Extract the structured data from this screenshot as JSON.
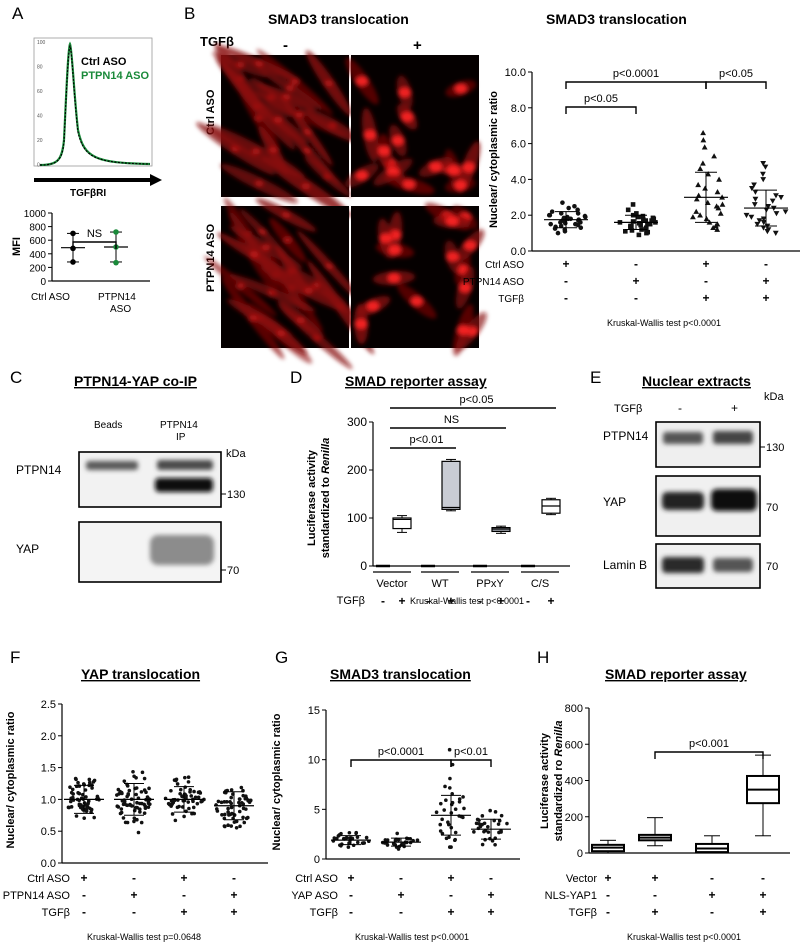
{
  "panels": {
    "A": {
      "letter": "A",
      "legend": [
        "Ctrl ASO",
        "PTPN14 ASO"
      ],
      "colors": {
        "ctrl": "#000000",
        "ptpn14": "#1a8a3a"
      },
      "histogram_xlabel": "TGFβRI",
      "y_ticks": [
        "1000",
        "800",
        "600",
        "400",
        "200",
        "0"
      ],
      "histogram_y_ticks": [
        "100",
        "80",
        "60",
        "40",
        "20",
        "0"
      ],
      "ylabel": "MFI",
      "sig": "NS",
      "x_labels": [
        "Ctrl ASO",
        "PTPN14",
        "ASO"
      ]
    },
    "B": {
      "letter": "B",
      "micro_title": "SMAD3 translocation",
      "tgf_label": "TGFβ",
      "tgf_minus": "-",
      "tgf_plus": "+",
      "row_labels": [
        "Ctrl ASO",
        "PTPN14 ASO"
      ],
      "chart_title": "SMAD3 translocation",
      "ylabel": "Nuclear/ cytoplasmic ratio",
      "y_ticks": [
        "10.0",
        "8.0",
        "6.0",
        "4.0",
        "2.0",
        "0.0"
      ],
      "sigs": [
        "p<0.0001",
        "p<0.05",
        "p<0.05"
      ],
      "cond_labels": [
        "Ctrl ASO",
        "PTPN14 ASO",
        "TGFβ"
      ],
      "cond_signs": [
        [
          "+",
          "-",
          "+",
          "-"
        ],
        [
          "-",
          "+",
          "-",
          "+"
        ],
        [
          "-",
          "-",
          "+",
          "+"
        ]
      ],
      "test": "Kruskal-Wallis test p<0.0001"
    },
    "C": {
      "letter": "C",
      "title": "PTPN14-YAP co-IP",
      "col_labels": [
        "Beads",
        "PTPN14",
        "IP"
      ],
      "kda": "kDa",
      "row_labels": [
        "PTPN14",
        "YAP"
      ],
      "markers": [
        "130",
        "70"
      ]
    },
    "D": {
      "letter": "D",
      "title": "SMAD reporter assay",
      "ylabel_1": "Luciferase activity",
      "ylabel_2": "standardized to ",
      "ylabel_2i": "Renilla",
      "y_ticks": [
        "300",
        "200",
        "100",
        "0"
      ],
      "sigs": [
        "p<0.05",
        "NS",
        "p<0.01"
      ],
      "groups": [
        "Vector",
        "WT",
        "PPxY",
        "C/S"
      ],
      "tgf_label": "TGFβ",
      "tgf_signs": [
        "-",
        "+",
        "-",
        "+",
        "-",
        "+",
        "-",
        "+"
      ],
      "test": "Kruskal-Wallis test p<0.0001"
    },
    "E": {
      "letter": "E",
      "title": "Nuclear extracts",
      "tgf_label": "TGFβ",
      "tgf_signs": [
        "-",
        "+"
      ],
      "kda": "kDa",
      "row_labels": [
        "PTPN14",
        "YAP",
        "Lamin B"
      ],
      "markers": [
        "130",
        "70",
        "70"
      ]
    },
    "F": {
      "letter": "F",
      "title": "YAP translocation",
      "ylabel": "Nuclear/ cytoplasmic ratio",
      "y_ticks": [
        "2.5",
        "2.0",
        "1.5",
        "1.0",
        "0.5",
        "0.0"
      ],
      "cond_labels": [
        "Ctrl ASO",
        "PTPN14 ASO",
        "TGFβ"
      ],
      "cond_signs": [
        [
          "+",
          "-",
          "+",
          "-"
        ],
        [
          "-",
          "+",
          "-",
          "+"
        ],
        [
          "-",
          "-",
          "+",
          "+"
        ]
      ],
      "test": "Kruskal-Wallis test p=0.0648"
    },
    "G": {
      "letter": "G",
      "title": "SMAD3 translocation",
      "ylabel": "Nuclear/ cytoplasmic ratio",
      "y_ticks": [
        "15",
        "10",
        "5",
        "0"
      ],
      "sigs": [
        "p<0.0001",
        "p<0.01"
      ],
      "cond_labels": [
        "Ctrl ASO",
        "YAP ASO",
        "TGFβ"
      ],
      "cond_signs": [
        [
          "+",
          "-",
          "+",
          "-"
        ],
        [
          "-",
          "+",
          "-",
          "+"
        ],
        [
          "-",
          "-",
          "+",
          "+"
        ]
      ],
      "test": "Kruskal-Wallis test p<0.0001"
    },
    "H": {
      "letter": "H",
      "title": "SMAD reporter assay",
      "ylabel_1": "Luciferase activity",
      "ylabel_2": "standardized ro ",
      "ylabel_2i": "Renilla",
      "y_ticks": [
        "800",
        "600",
        "400",
        "200",
        "0"
      ],
      "sigs": [
        "p<0.001"
      ],
      "cond_labels": [
        "Vector",
        "NLS-YAP1",
        "TGFβ"
      ],
      "cond_signs": [
        [
          "+",
          "+",
          "-",
          "-"
        ],
        [
          "-",
          "-",
          "+",
          "+"
        ],
        [
          "-",
          "+",
          "-",
          "+"
        ]
      ],
      "test": "Kruskal-Wallis test p<0.0001"
    }
  },
  "chart_data": [
    {
      "panel": "A",
      "type": "scatter",
      "categories": [
        "Ctrl ASO",
        "PTPN14 ASO"
      ],
      "ylabel": "MFI",
      "ylim": [
        0,
        1000
      ],
      "points": [
        [
          700,
          480,
          280
        ],
        [
          720,
          500,
          270
        ]
      ],
      "mean": [
        490,
        500
      ],
      "sd": [
        210,
        220
      ],
      "colors": [
        "#000000",
        "#1a8a3a"
      ]
    },
    {
      "panel": "B",
      "type": "scatter",
      "title": "SMAD3 translocation",
      "ylabel": "Nuclear/ cytoplasmic ratio",
      "ylim": [
        0,
        10
      ],
      "groups": 4,
      "markers": [
        "circle",
        "square",
        "triangle",
        "triangle-down"
      ],
      "mean": [
        1.75,
        1.6,
        3.0,
        2.4
      ],
      "sd": [
        0.45,
        0.4,
        1.4,
        1.0
      ],
      "points": [
        [
          2.7,
          2.5,
          2.4,
          2.3,
          2.2,
          2.1,
          2.1,
          2.0,
          2.0,
          1.95,
          1.9,
          1.9,
          1.85,
          1.8,
          1.8,
          1.75,
          1.7,
          1.7,
          1.65,
          1.6,
          1.6,
          1.55,
          1.5,
          1.5,
          1.45,
          1.4,
          1.35,
          1.3,
          1.25,
          1.2,
          1.1,
          1.0
        ],
        [
          2.6,
          2.3,
          2.1,
          2.0,
          1.95,
          1.9,
          1.85,
          1.8,
          1.75,
          1.7,
          1.7,
          1.65,
          1.6,
          1.6,
          1.55,
          1.5,
          1.5,
          1.45,
          1.4,
          1.4,
          1.35,
          1.3,
          1.25,
          1.2,
          1.15,
          1.1,
          1.05,
          1.0,
          0.9
        ],
        [
          6.6,
          6.2,
          5.8,
          5.3,
          4.9,
          4.6,
          4.3,
          4.0,
          3.7,
          3.5,
          3.3,
          3.1,
          3.0,
          2.9,
          2.7,
          2.6,
          2.5,
          2.4,
          2.2,
          2.1,
          2.0,
          1.9,
          1.8,
          1.6,
          1.5,
          1.4,
          1.3,
          1.2
        ],
        [
          4.9,
          4.7,
          4.3,
          4.0,
          3.7,
          3.5,
          3.3,
          3.1,
          3.0,
          2.9,
          2.8,
          2.6,
          2.5,
          2.4,
          2.3,
          2.2,
          2.1,
          2.0,
          1.9,
          1.8,
          1.7,
          1.6,
          1.5,
          1.4,
          1.3,
          1.2,
          1.1,
          1.0
        ]
      ],
      "significance": [
        {
          "from": 0,
          "to": 2,
          "label": "p<0.0001"
        },
        {
          "from": 0,
          "to": 1,
          "label": "p<0.05"
        },
        {
          "from": 2,
          "to": 3,
          "label": "p<0.05"
        }
      ]
    },
    {
      "panel": "D",
      "type": "box",
      "title": "SMAD reporter assay",
      "ylim": [
        0,
        300
      ],
      "categories": [
        "Vector -",
        "Vector +",
        "WT -",
        "WT +",
        "PPxY -",
        "PPxY +",
        "C/S -",
        "C/S +"
      ],
      "boxes": [
        null,
        {
          "min": 70,
          "q1": 78,
          "median": 97,
          "q3": 100,
          "max": 105
        },
        null,
        {
          "min": 115,
          "q1": 118,
          "median": 122,
          "q3": 218,
          "max": 222
        },
        null,
        {
          "min": 68,
          "q1": 72,
          "median": 77,
          "q3": 80,
          "max": 83
        },
        null,
        {
          "min": 107,
          "q1": 110,
          "median": 125,
          "q3": 138,
          "max": 141
        }
      ],
      "fills": [
        "#ffffff",
        "#c9ccd4",
        "#9ea3ac",
        "#ffffff"
      ],
      "significance": [
        {
          "from": 1,
          "to": 7,
          "label": "p<0.05"
        },
        {
          "from": 1,
          "to": 5,
          "label": "NS"
        },
        {
          "from": 1,
          "to": 3,
          "label": "p<0.01"
        }
      ]
    },
    {
      "panel": "F",
      "type": "scatter",
      "title": "YAP translocation",
      "ylim": [
        0,
        2.5
      ],
      "mean": [
        1.0,
        1.0,
        1.0,
        0.9
      ],
      "sd": [
        0.22,
        0.25,
        0.2,
        0.22
      ],
      "n_per_group": [
        60,
        70,
        60,
        60
      ],
      "range": [
        [
          0.45,
          1.6
        ],
        [
          0.45,
          2.0
        ],
        [
          0.55,
          1.65
        ],
        [
          0.45,
          1.45
        ]
      ]
    },
    {
      "panel": "G",
      "type": "scatter",
      "title": "SMAD3 translocation",
      "ylim": [
        0,
        15
      ],
      "mean": [
        1.9,
        1.7,
        4.4,
        3.0
      ],
      "sd": [
        0.45,
        0.4,
        2.0,
        1.0
      ],
      "n_per_group": [
        30,
        30,
        35,
        30
      ],
      "range": [
        [
          1.2,
          2.8
        ],
        [
          1.0,
          2.8
        ],
        [
          1.2,
          11
        ],
        [
          1.0,
          5.5
        ]
      ],
      "significance": [
        {
          "from": 0,
          "to": 2,
          "label": "p<0.0001"
        },
        {
          "from": 2,
          "to": 3,
          "label": "p<0.01"
        }
      ]
    },
    {
      "panel": "H",
      "type": "box",
      "title": "SMAD reporter assay",
      "ylim": [
        0,
        800
      ],
      "boxes": [
        {
          "min": 0,
          "q1": 10,
          "median": 30,
          "q3": 45,
          "max": 70
        },
        {
          "min": 40,
          "q1": 70,
          "median": 85,
          "q3": 100,
          "max": 195
        },
        {
          "min": 0,
          "q1": 5,
          "median": 25,
          "q3": 50,
          "max": 95
        },
        {
          "min": 95,
          "q1": 275,
          "median": 350,
          "q3": 425,
          "max": 540
        }
      ],
      "significance": [
        {
          "from": 1,
          "to": 3,
          "label": "p<0.001"
        }
      ]
    }
  ]
}
